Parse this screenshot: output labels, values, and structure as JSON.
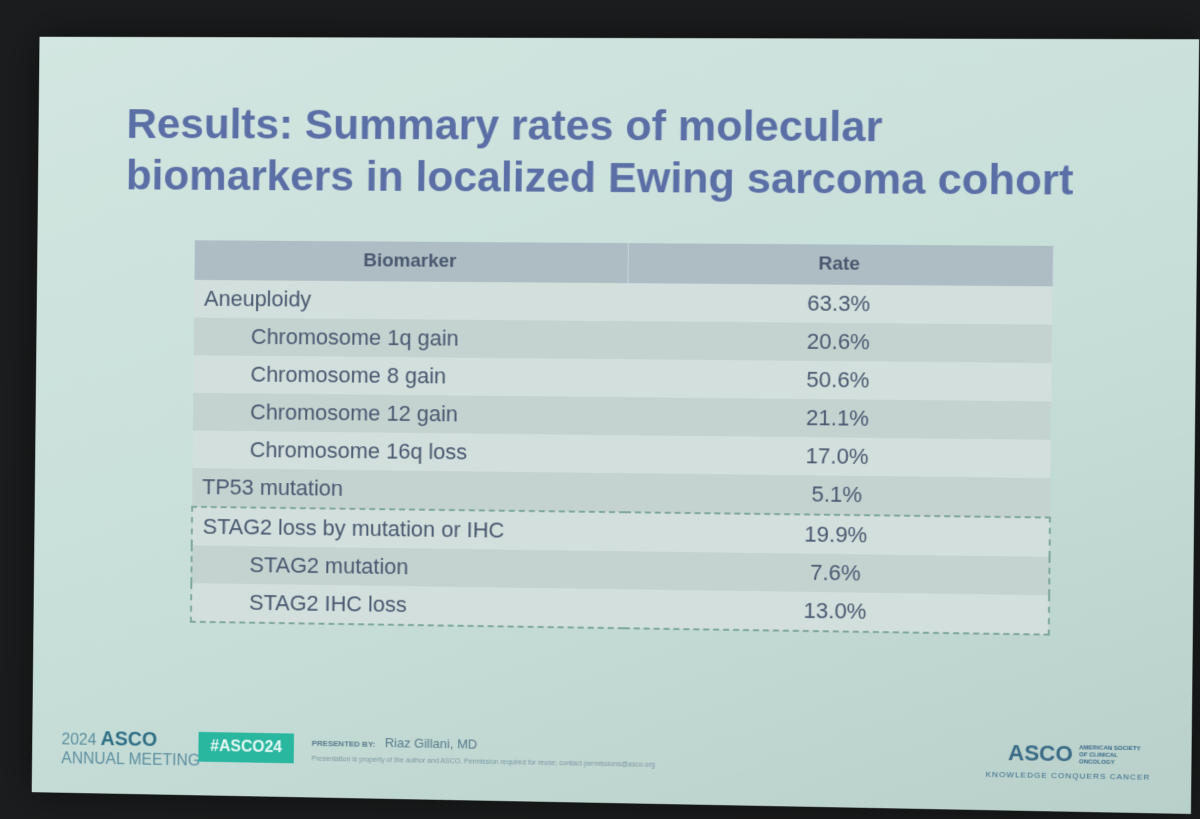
{
  "slide": {
    "title": "Results: Summary rates of molecular biomarkers in localized Ewing sarcoma cohort",
    "table": {
      "headers": [
        "Biomarker",
        "Rate"
      ],
      "rows": [
        {
          "label": "Aneuploidy",
          "rate": "63.3%",
          "children": [
            {
              "label": "Chromosome 1q gain",
              "rate": "20.6%"
            },
            {
              "label": "Chromosome 8 gain",
              "rate": "50.6%"
            },
            {
              "label": "Chromosome 12 gain",
              "rate": "21.1%"
            },
            {
              "label": "Chromosome 16q loss",
              "rate": "17.0%"
            }
          ]
        },
        {
          "label": "TP53 mutation",
          "rate": "5.1%"
        },
        {
          "label": "STAG2 loss by mutation or IHC",
          "rate": "19.9%",
          "outlined": true,
          "children": [
            {
              "label": "STAG2 mutation",
              "rate": "7.6%"
            },
            {
              "label": "STAG2 IHC loss",
              "rate": "13.0%"
            }
          ]
        }
      ]
    },
    "footer": {
      "meeting_year": "2024",
      "meeting_brand": "ASCO",
      "meeting_name": "ANNUAL MEETING",
      "hashtag": "#ASCO24",
      "presented_by_label": "PRESENTED BY:",
      "presenter": "Riaz Gillani, MD",
      "disclaimer": "Presentation is property of the author and ASCO. Permission required for reuse; contact permissions@asco.org",
      "logo": "ASCO",
      "logo_small": "AMERICAN SOCIETY OF CLINICAL ONCOLOGY",
      "tagline": "KNOWLEDGE CONQUERS CANCER"
    }
  }
}
